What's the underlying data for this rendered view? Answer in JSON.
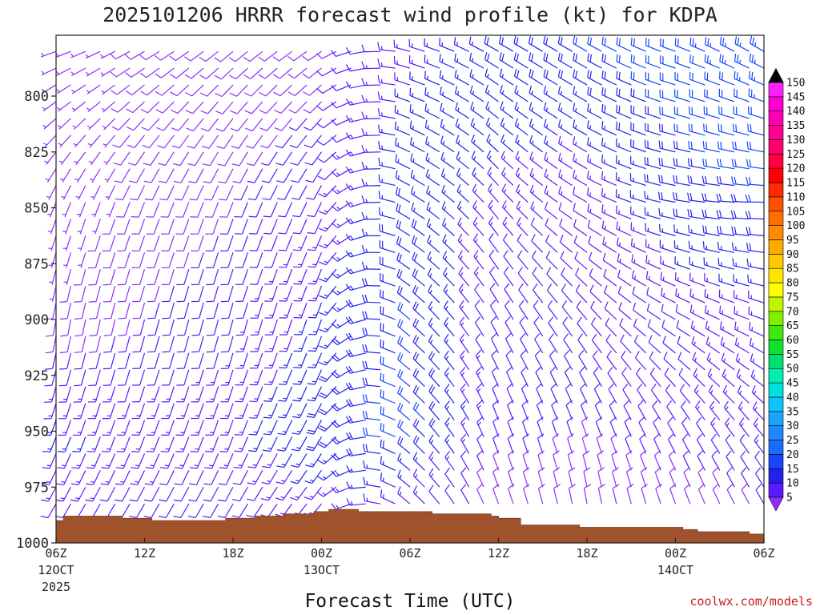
{
  "chart_data": {
    "type": "wind-barb-time-height",
    "title": "2025101206 HRRR forecast wind profile (kt) for KDPA",
    "xlabel": "Forecast Time (UTC)",
    "ylabel": "",
    "credit": "coolwx.com/models",
    "y_axis": {
      "units": "hPa",
      "range": [
        1000,
        775
      ],
      "ticks": [
        800,
        825,
        850,
        875,
        900,
        925,
        950,
        975,
        1000
      ]
    },
    "x_axis": {
      "range_hours": [
        0,
        48
      ],
      "ticks": [
        {
          "hour": 0,
          "label": "06Z",
          "date": "12OCT",
          "year": "2025"
        },
        {
          "hour": 6,
          "label": "12Z"
        },
        {
          "hour": 12,
          "label": "18Z"
        },
        {
          "hour": 18,
          "label": "00Z",
          "date": "13OCT"
        },
        {
          "hour": 24,
          "label": "06Z"
        },
        {
          "hour": 30,
          "label": "12Z"
        },
        {
          "hour": 36,
          "label": "18Z"
        },
        {
          "hour": 42,
          "label": "00Z",
          "date": "14OCT"
        },
        {
          "hour": 48,
          "label": "06Z"
        }
      ]
    },
    "surface_pressure": {
      "color": "#a0522d",
      "hours": [
        0,
        0.5,
        2.5,
        4.5,
        6.5,
        7.5,
        11.5,
        13.5,
        15.5,
        17.5,
        18.5,
        20.5,
        23.5,
        25.5,
        28.5,
        29.5,
        30,
        31.5,
        33.5,
        35.5,
        37.5,
        39.5,
        41.5,
        42.5,
        43.5,
        45.5,
        47,
        48
      ],
      "pressure": [
        990,
        988,
        988,
        989,
        990,
        990,
        989,
        988,
        987,
        986,
        985,
        986,
        986,
        987,
        987,
        988,
        989,
        992,
        992,
        993,
        993,
        993,
        993,
        994,
        995,
        995,
        996,
        996
      ]
    },
    "colorbar": {
      "units": "kt",
      "levels": [
        5,
        10,
        15,
        20,
        25,
        30,
        35,
        40,
        45,
        50,
        55,
        60,
        65,
        70,
        75,
        80,
        85,
        90,
        95,
        100,
        105,
        110,
        115,
        120,
        125,
        130,
        135,
        140,
        145,
        150
      ],
      "colors": [
        "#8f2dff",
        "#5a19ff",
        "#2222ee",
        "#1746ff",
        "#1a6cff",
        "#1e88ff",
        "#1aa4ff",
        "#10c4ff",
        "#00e0e0",
        "#00eeb0",
        "#00e070",
        "#10e030",
        "#40e810",
        "#80f000",
        "#c0f400",
        "#ffff00",
        "#ffe400",
        "#ffc800",
        "#ffaa00",
        "#ff8c00",
        "#ff7000",
        "#ff5000",
        "#ff2a00",
        "#ff0000",
        "#ff0040",
        "#ff0070",
        "#ff0090",
        "#ff00b0",
        "#ff00d0",
        "#ff20ff"
      ]
    },
    "barb_grid": {
      "hour_step": 1,
      "pressure_levels": [
        780,
        787.5,
        795,
        802.5,
        810,
        817.5,
        825,
        832.5,
        840,
        847.5,
        855,
        862.5,
        870,
        877.5,
        885,
        892.5,
        900,
        907.5,
        915,
        922.5,
        930,
        937.5,
        945,
        952.5,
        960,
        967.5,
        975,
        982.5
      ],
      "speed_anchors": {
        "hours": [
          0,
          6,
          12,
          18,
          24,
          30,
          36,
          42,
          48
        ],
        "by_level": {
          "780": [
            6,
            8,
            8,
            9,
            14,
            18,
            20,
            22,
            24
          ],
          "850": [
            6,
            8,
            10,
            12,
            18,
            14,
            12,
            18,
            20
          ],
          "900": [
            8,
            10,
            12,
            16,
            20,
            10,
            10,
            12,
            14
          ],
          "950": [
            16,
            14,
            14,
            18,
            22,
            12,
            10,
            12,
            14
          ],
          "980": [
            12,
            12,
            10,
            14,
            14,
            8,
            8,
            8,
            10
          ]
        }
      },
      "direction_anchors_deg": {
        "hours": [
          0,
          6,
          12,
          18,
          24,
          30,
          36,
          42,
          48
        ],
        "by_level": {
          "780": [
            250,
            240,
            230,
            235,
            285,
            300,
            300,
            290,
            300
          ],
          "850": [
            200,
            200,
            200,
            205,
            300,
            320,
            300,
            280,
            270
          ],
          "900": [
            190,
            195,
            195,
            200,
            310,
            330,
            320,
            300,
            290
          ],
          "950": [
            200,
            200,
            200,
            210,
            310,
            340,
            340,
            330,
            320
          ],
          "980": [
            210,
            210,
            210,
            220,
            310,
            340,
            350,
            340,
            330
          ]
        }
      }
    }
  }
}
